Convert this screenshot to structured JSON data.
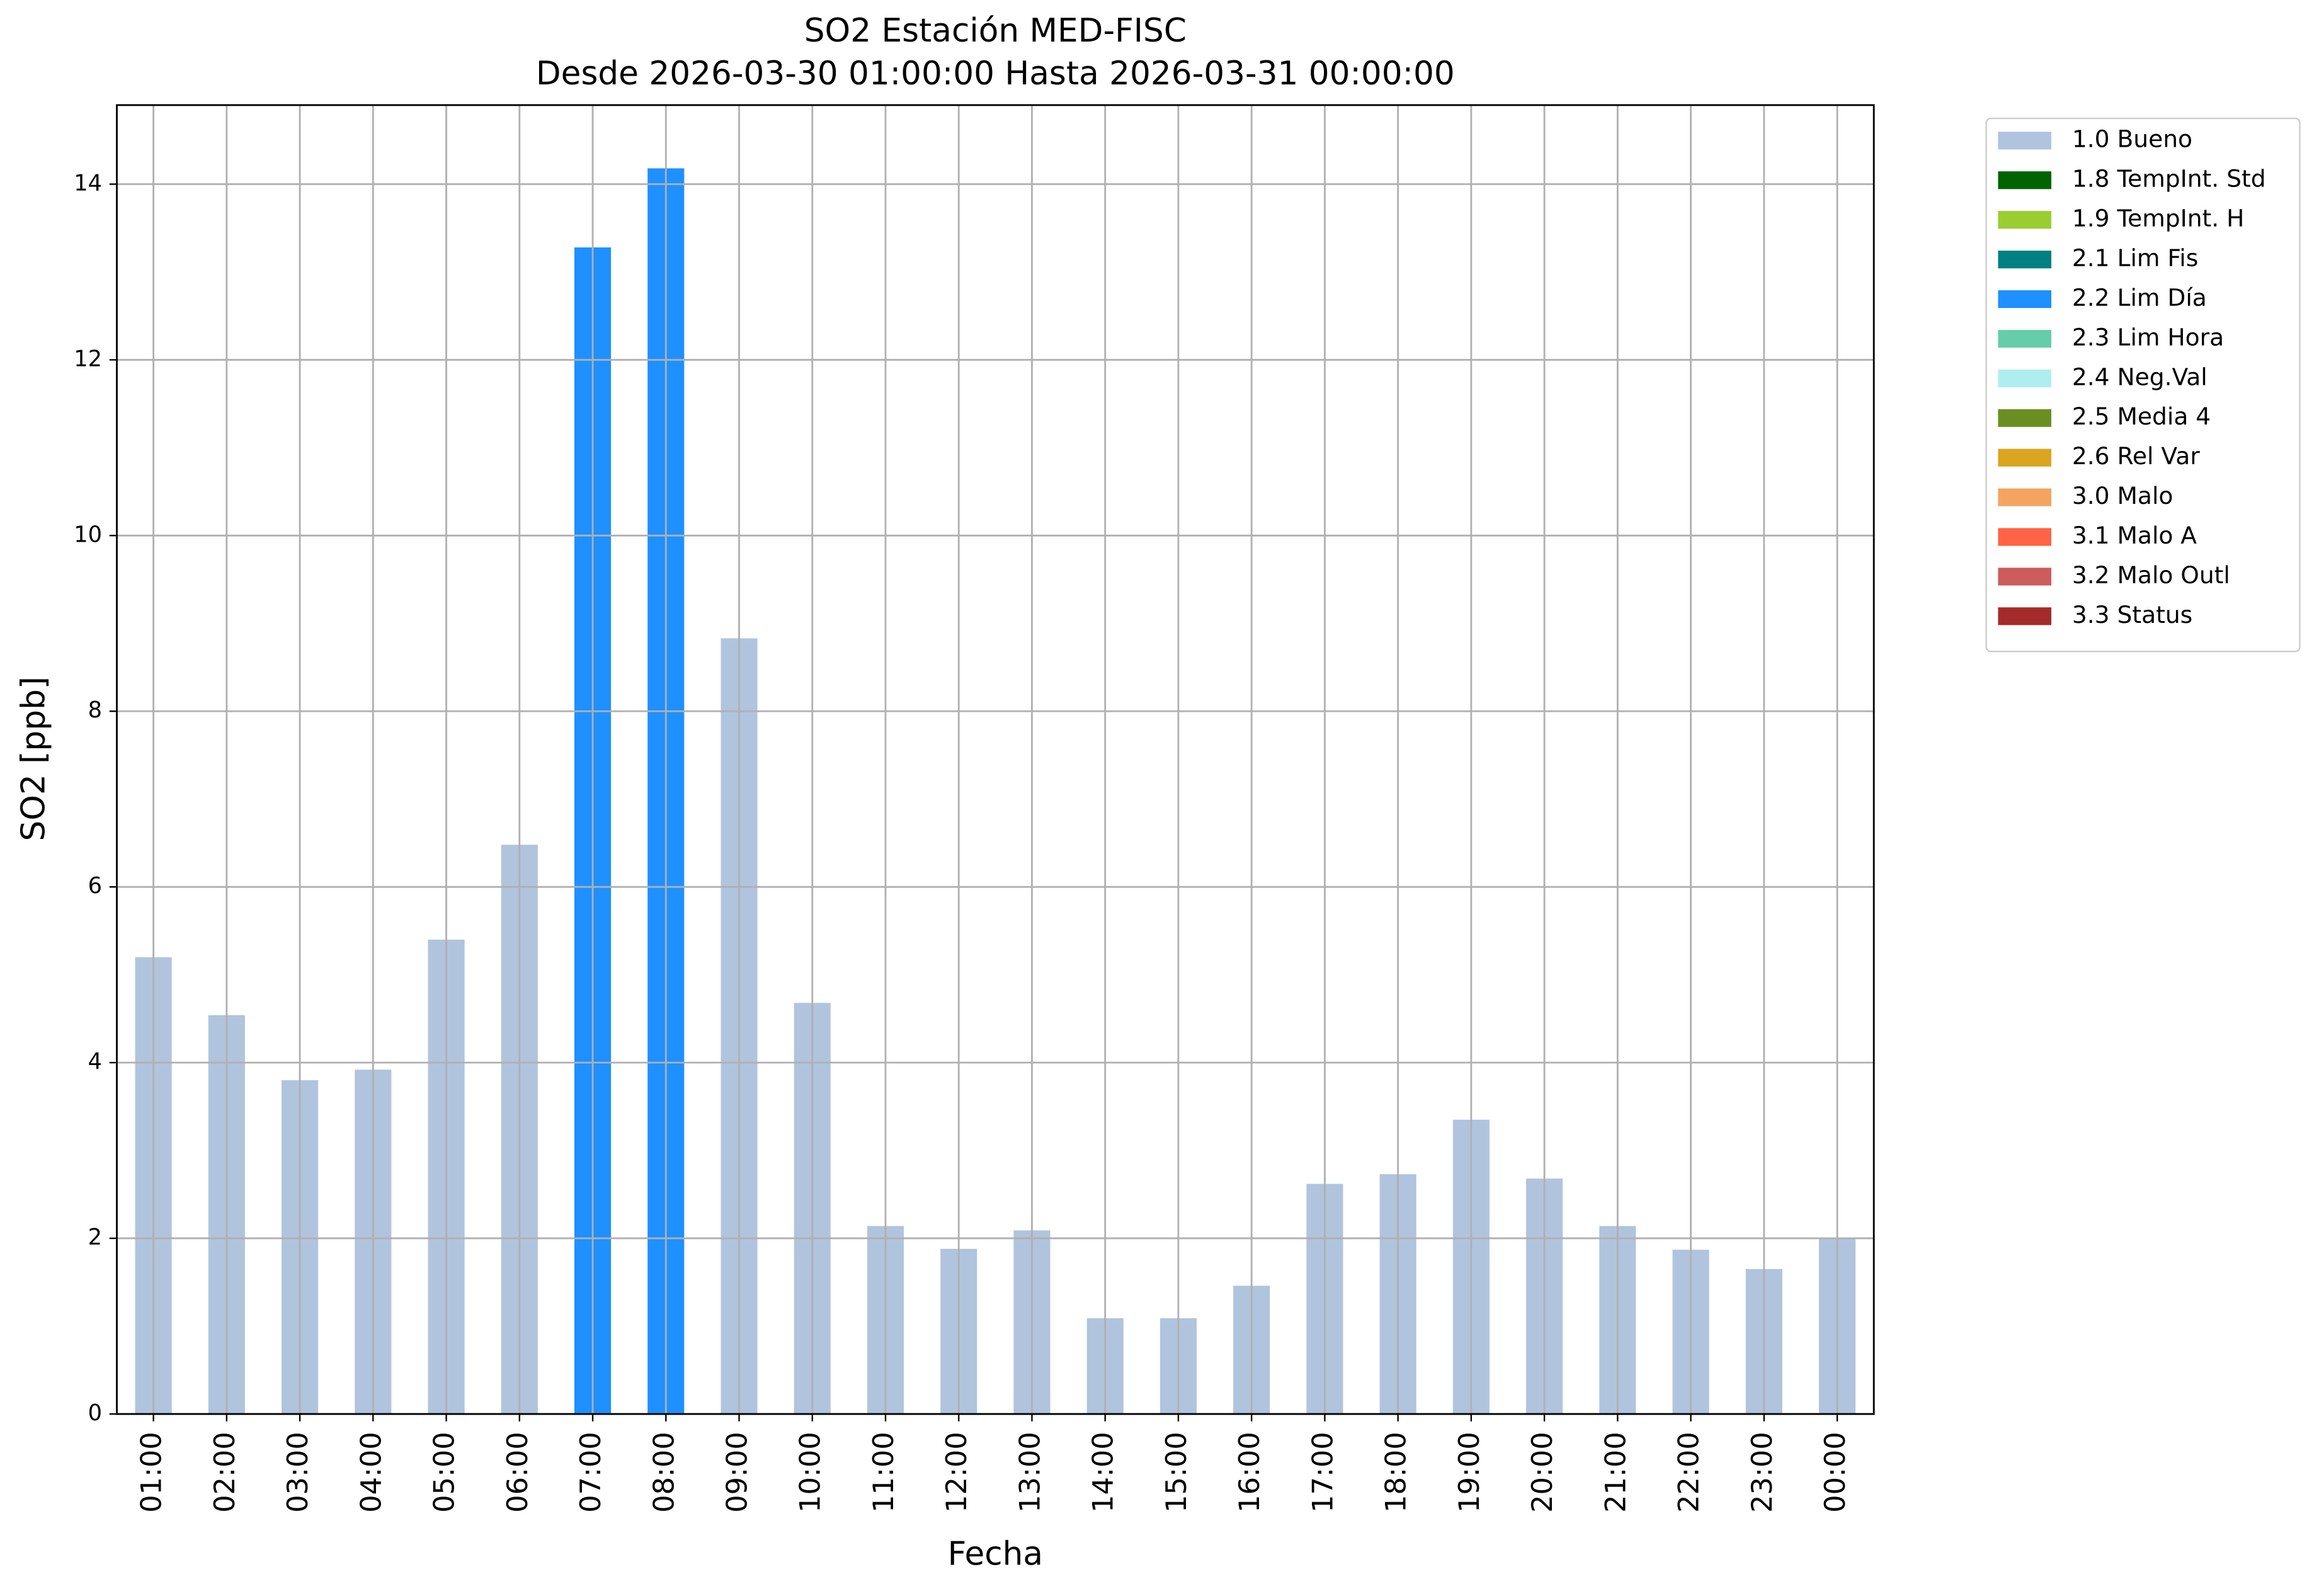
{
  "chart_data": {
    "type": "bar",
    "stacked": true,
    "title": "SO2 Estación MED-FISC",
    "subtitle": "Desde 2026-03-30 01:00:00 Hasta 2026-03-31 00:00:00",
    "xlabel": "Fecha",
    "ylabel": "SO2 [ppb]",
    "categories": [
      "01:00",
      "02:00",
      "03:00",
      "04:00",
      "05:00",
      "06:00",
      "07:00",
      "08:00",
      "09:00",
      "10:00",
      "11:00",
      "12:00",
      "13:00",
      "14:00",
      "15:00",
      "16:00",
      "17:00",
      "18:00",
      "19:00",
      "20:00",
      "21:00",
      "22:00",
      "23:00",
      "00:00"
    ],
    "series": [
      {
        "name": "1.0 Bueno",
        "color": "#b0c4de",
        "values": [
          5.2,
          4.54,
          3.8,
          3.92,
          5.4,
          6.48,
          null,
          null,
          8.83,
          4.68,
          2.14,
          1.88,
          2.09,
          1.09,
          1.09,
          1.46,
          2.62,
          2.73,
          3.35,
          2.68,
          2.14,
          1.87,
          1.65,
          2.0
        ]
      },
      {
        "name": "1.8 TempInt. Std",
        "color": "#006400",
        "values": [
          null,
          null,
          null,
          null,
          null,
          null,
          null,
          null,
          null,
          null,
          null,
          null,
          null,
          null,
          null,
          null,
          null,
          null,
          null,
          null,
          null,
          null,
          null,
          null
        ]
      },
      {
        "name": "1.9 TempInt. H",
        "color": "#9acd32",
        "values": [
          null,
          null,
          null,
          null,
          null,
          null,
          null,
          null,
          null,
          null,
          null,
          null,
          null,
          null,
          null,
          null,
          null,
          null,
          null,
          null,
          null,
          null,
          null,
          null
        ]
      },
      {
        "name": "2.1 Lim Fis",
        "color": "#008080",
        "values": [
          null,
          null,
          null,
          null,
          null,
          null,
          null,
          null,
          null,
          null,
          null,
          null,
          null,
          null,
          null,
          null,
          null,
          null,
          null,
          null,
          null,
          null,
          null,
          null
        ]
      },
      {
        "name": "2.2 Lim Día",
        "color": "#1e90ff",
        "values": [
          null,
          null,
          null,
          null,
          null,
          null,
          13.28,
          14.18,
          null,
          null,
          null,
          null,
          null,
          null,
          null,
          null,
          null,
          null,
          null,
          null,
          null,
          null,
          null,
          null
        ]
      },
      {
        "name": "2.3 Lim Hora",
        "color": "#66cdaa",
        "values": [
          null,
          null,
          null,
          null,
          null,
          null,
          null,
          null,
          null,
          null,
          null,
          null,
          null,
          null,
          null,
          null,
          null,
          null,
          null,
          null,
          null,
          null,
          null,
          null
        ]
      },
      {
        "name": "2.4 Neg.Val",
        "color": "#afeeee",
        "values": [
          null,
          null,
          null,
          null,
          null,
          null,
          null,
          null,
          null,
          null,
          null,
          null,
          null,
          null,
          null,
          null,
          null,
          null,
          null,
          null,
          null,
          null,
          null,
          null
        ]
      },
      {
        "name": "2.5 Media 4",
        "color": "#6b8e23",
        "values": [
          null,
          null,
          null,
          null,
          null,
          null,
          null,
          null,
          null,
          null,
          null,
          null,
          null,
          null,
          null,
          null,
          null,
          null,
          null,
          null,
          null,
          null,
          null,
          null
        ]
      },
      {
        "name": "2.6 Rel Var",
        "color": "#daa520",
        "values": [
          null,
          null,
          null,
          null,
          null,
          null,
          null,
          null,
          null,
          null,
          null,
          null,
          null,
          null,
          null,
          null,
          null,
          null,
          null,
          null,
          null,
          null,
          null,
          null
        ]
      },
      {
        "name": "3.0 Malo",
        "color": "#f4a460",
        "values": [
          null,
          null,
          null,
          null,
          null,
          null,
          null,
          null,
          null,
          null,
          null,
          null,
          null,
          null,
          null,
          null,
          null,
          null,
          null,
          null,
          null,
          null,
          null,
          null
        ]
      },
      {
        "name": "3.1 Malo A",
        "color": "#ff6347",
        "values": [
          null,
          null,
          null,
          null,
          null,
          null,
          null,
          null,
          null,
          null,
          null,
          null,
          null,
          null,
          null,
          null,
          null,
          null,
          null,
          null,
          null,
          null,
          null,
          null
        ]
      },
      {
        "name": "3.2 Malo Outl",
        "color": "#cd5c5c",
        "values": [
          null,
          null,
          null,
          null,
          null,
          null,
          null,
          null,
          null,
          null,
          null,
          null,
          null,
          null,
          null,
          null,
          null,
          null,
          null,
          null,
          null,
          null,
          null,
          null
        ]
      },
      {
        "name": "3.3 Status",
        "color": "#a52a2a",
        "values": [
          null,
          null,
          null,
          null,
          null,
          null,
          null,
          null,
          null,
          null,
          null,
          null,
          null,
          null,
          null,
          null,
          null,
          null,
          null,
          null,
          null,
          null,
          null,
          null
        ]
      }
    ],
    "ylim": [
      0,
      14.9
    ],
    "yticks": [
      0,
      2,
      4,
      6,
      8,
      10,
      12,
      14
    ],
    "grid": true,
    "legend": "outside-upper-right"
  }
}
